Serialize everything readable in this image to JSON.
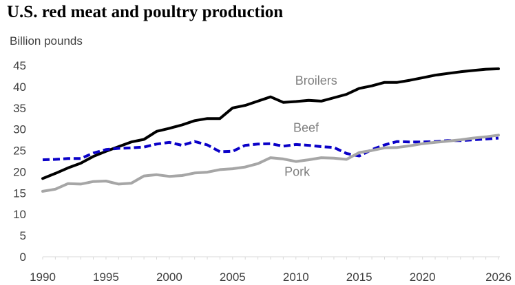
{
  "chart_data": {
    "type": "line",
    "title": "U.S. red meat and poultry production",
    "ylabel": "Billion pounds",
    "xlabel": "",
    "ylim": [
      0,
      45
    ],
    "yticks": [
      0,
      5,
      10,
      15,
      20,
      25,
      30,
      35,
      40,
      45
    ],
    "xlim": [
      1990,
      2026
    ],
    "xticks": [
      1990,
      1995,
      2000,
      2005,
      2010,
      2015,
      2020,
      2026
    ],
    "grid": false,
    "legend": "inline labels",
    "x": [
      1990,
      1991,
      1992,
      1993,
      1994,
      1995,
      1996,
      1997,
      1998,
      1999,
      2000,
      2001,
      2002,
      2003,
      2004,
      2005,
      2006,
      2007,
      2008,
      2009,
      2010,
      2011,
      2012,
      2013,
      2014,
      2015,
      2016,
      2017,
      2018,
      2019,
      2020,
      2021,
      2022,
      2023,
      2024,
      2025,
      2026
    ],
    "series": [
      {
        "name": "Broilers",
        "color": "#000000",
        "style": "solid",
        "values": [
          18.4,
          19.6,
          20.9,
          22.0,
          23.6,
          24.8,
          25.9,
          27.0,
          27.6,
          29.5,
          30.2,
          31.0,
          32.0,
          32.5,
          32.5,
          35.0,
          35.6,
          36.6,
          37.6,
          36.3,
          36.5,
          36.8,
          36.6,
          37.4,
          38.2,
          39.6,
          40.2,
          41.0,
          41.0,
          41.5,
          42.1,
          42.7,
          43.1,
          43.5,
          43.8,
          44.1,
          44.2
        ]
      },
      {
        "name": "Beef",
        "color": "#0a00c8",
        "style": "dashed",
        "values": [
          22.8,
          22.9,
          23.1,
          23.1,
          24.4,
          25.2,
          25.5,
          25.6,
          25.8,
          26.5,
          26.9,
          26.2,
          27.1,
          26.3,
          24.7,
          24.8,
          26.2,
          26.5,
          26.6,
          26.0,
          26.4,
          26.2,
          25.9,
          25.7,
          24.3,
          23.7,
          25.2,
          26.3,
          27.1,
          27.0,
          27.0,
          27.1,
          27.3,
          27.3,
          27.5,
          27.7,
          27.9
        ]
      },
      {
        "name": "Pork",
        "color": "#a6a6a6",
        "style": "solid",
        "values": [
          15.4,
          15.9,
          17.2,
          17.1,
          17.7,
          17.8,
          17.1,
          17.3,
          19.0,
          19.3,
          18.9,
          19.1,
          19.7,
          19.9,
          20.5,
          20.7,
          21.1,
          21.9,
          23.3,
          23.0,
          22.4,
          22.8,
          23.3,
          23.2,
          22.9,
          24.5,
          25.0,
          25.6,
          25.7,
          26.1,
          26.6,
          26.9,
          27.2,
          27.5,
          27.9,
          28.2,
          28.6
        ]
      }
    ]
  }
}
